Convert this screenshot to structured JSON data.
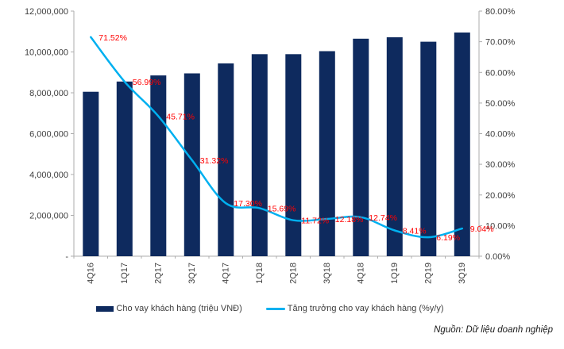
{
  "chart_data": {
    "type": "bar+line",
    "title": "",
    "categories": [
      "4Q16",
      "1Q17",
      "2Q17",
      "3Q17",
      "4Q17",
      "1Q18",
      "2Q18",
      "3Q18",
      "4Q18",
      "1Q19",
      "2Q19",
      "3Q19"
    ],
    "series": [
      {
        "name": "Cho vay khách hàng (triệu VNĐ)",
        "kind": "bar",
        "axis": "left",
        "color": "#0E2A5E",
        "values": [
          8050000,
          8550000,
          8850000,
          8950000,
          9440000,
          9890000,
          9890000,
          10040000,
          10650000,
          10720000,
          10500000,
          10950000
        ]
      },
      {
        "name": "Tăng trưởng cho vay khách hàng (%y/y)",
        "kind": "line",
        "axis": "right",
        "color": "#00B0F0",
        "smooth": true,
        "values": [
          71.52,
          56.99,
          45.71,
          31.32,
          17.3,
          15.69,
          11.72,
          12.18,
          12.74,
          8.41,
          6.19,
          9.04
        ],
        "point_labels": [
          "71.52%",
          "56.99%",
          "45.71%",
          "31.32%",
          "17.30%",
          "15.69%",
          "11.72%",
          "12.18%",
          "12.74%",
          "8.41%",
          "6.19%",
          "9.04%"
        ],
        "label_color": "#FF0000"
      }
    ],
    "left_axis": {
      "min": 0,
      "max": 12000000,
      "tick_interval": 2000000,
      "tick_labels": [
        "12,000,000",
        "10,000,000",
        "8,000,000",
        "6,000,000",
        "4,000,000",
        "2,000,000",
        "-"
      ]
    },
    "right_axis": {
      "min": 0,
      "max": 80,
      "tick_interval": 10,
      "tick_labels": [
        "80.00%",
        "70.00%",
        "60.00%",
        "50.00%",
        "40.00%",
        "30.00%",
        "20.00%",
        "10.00%",
        "0.00%"
      ]
    },
    "grid": false,
    "legend_position": "bottom",
    "axis_text_color": "#404040",
    "axis_line_color": "#ADADAD",
    "x_label_rotation": -90
  },
  "source_note": "Nguồn: Dữ liệu doanh nghiệp"
}
